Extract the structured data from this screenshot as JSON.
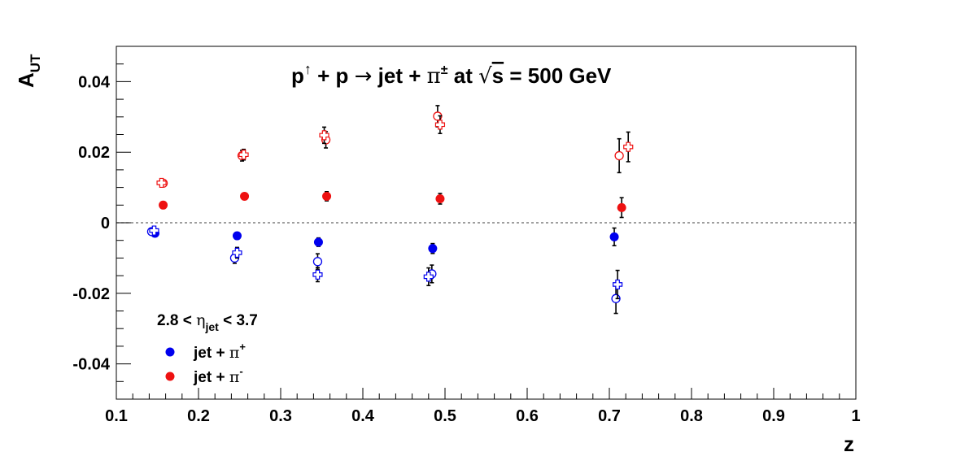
{
  "chart_data": {
    "type": "scatter",
    "title_parts": {
      "p": "p",
      "up_arrow": "↑",
      "plus_p": " + p ",
      "arrow": "→",
      "jet_plus": " jet + ",
      "pi": "π",
      "pi_sup": "±",
      "at": " at ",
      "sqrt": "√",
      "s": "s",
      "energy": " = 500 GeV"
    },
    "xlabel": "z",
    "ylabel": "A",
    "ylabel_sub": "UT",
    "xlim": [
      0.1,
      1.0
    ],
    "ylim": [
      -0.05,
      0.05
    ],
    "x_ticks": [
      0.1,
      0.2,
      0.3,
      0.4,
      0.5,
      0.6,
      0.7,
      0.8,
      0.9,
      1.0
    ],
    "x_tick_labels": [
      "0.1",
      "0.2",
      "0.3",
      "0.4",
      "0.5",
      "0.6",
      "0.7",
      "0.8",
      "0.9",
      "1"
    ],
    "y_ticks": [
      -0.04,
      -0.02,
      0,
      0.02,
      0.04
    ],
    "y_tick_labels": [
      "-0.04",
      "-0.02",
      "0",
      "0.02",
      "0.04"
    ],
    "zero_line": true,
    "grid": false,
    "legend": {
      "placement": "bottom-left",
      "header_pre": "2.8 < ",
      "header_eta": "η",
      "header_sub": "jet",
      "header_post": " < 3.7",
      "entries": [
        {
          "text": "jet + ",
          "pi": "π",
          "sup": "+",
          "color": "#0000ee"
        },
        {
          "text": "jet + ",
          "pi": "π",
          "sup": "-",
          "color": "#ee1111"
        }
      ]
    },
    "series": [
      {
        "marker": "filled-circle",
        "color": "#0000ee",
        "points": [
          {
            "x": 0.147,
            "y": -0.003,
            "err": 0.0008
          },
          {
            "x": 0.247,
            "y": -0.0037,
            "err": 0.0006
          },
          {
            "x": 0.346,
            "y": -0.0055,
            "err": 0.0012
          },
          {
            "x": 0.485,
            "y": -0.0073,
            "err": 0.0014
          },
          {
            "x": 0.706,
            "y": -0.004,
            "err": 0.0025
          }
        ]
      },
      {
        "marker": "filled-circle",
        "color": "#ee1111",
        "points": [
          {
            "x": 0.157,
            "y": 0.005,
            "err": 0.0006
          },
          {
            "x": 0.256,
            "y": 0.0075,
            "err": 0.0006
          },
          {
            "x": 0.356,
            "y": 0.0075,
            "err": 0.0013
          },
          {
            "x": 0.494,
            "y": 0.0068,
            "err": 0.0015
          },
          {
            "x": 0.715,
            "y": 0.0043,
            "err": 0.0028
          }
        ]
      },
      {
        "marker": "open-circle",
        "color": "#0000ee",
        "points": [
          {
            "x": 0.143,
            "y": -0.0025,
            "err": 0.0008
          },
          {
            "x": 0.244,
            "y": -0.01,
            "err": 0.0015
          },
          {
            "x": 0.345,
            "y": -0.011,
            "err": 0.0022
          },
          {
            "x": 0.484,
            "y": -0.0145,
            "err": 0.0025
          },
          {
            "x": 0.708,
            "y": -0.0215,
            "err": 0.0042
          }
        ]
      },
      {
        "marker": "open-cross",
        "color": "#0000ee",
        "points": [
          {
            "x": 0.146,
            "y": -0.0022,
            "err": 0.0008
          },
          {
            "x": 0.247,
            "y": -0.0085,
            "err": 0.0015
          },
          {
            "x": 0.345,
            "y": -0.0147,
            "err": 0.002
          },
          {
            "x": 0.48,
            "y": -0.0153,
            "err": 0.0025
          },
          {
            "x": 0.71,
            "y": -0.0175,
            "err": 0.004
          }
        ]
      },
      {
        "marker": "open-circle",
        "color": "#ee1111",
        "points": [
          {
            "x": 0.157,
            "y": 0.0112,
            "err": 0.0008
          },
          {
            "x": 0.253,
            "y": 0.019,
            "err": 0.0015
          },
          {
            "x": 0.355,
            "y": 0.0235,
            "err": 0.0023
          },
          {
            "x": 0.491,
            "y": 0.0302,
            "err": 0.003
          },
          {
            "x": 0.712,
            "y": 0.019,
            "err": 0.0048
          }
        ]
      },
      {
        "marker": "open-cross",
        "color": "#ee1111",
        "points": [
          {
            "x": 0.155,
            "y": 0.0113,
            "err": 0.0008
          },
          {
            "x": 0.255,
            "y": 0.0193,
            "err": 0.0015
          },
          {
            "x": 0.353,
            "y": 0.0248,
            "err": 0.0023
          },
          {
            "x": 0.494,
            "y": 0.0278,
            "err": 0.0025
          },
          {
            "x": 0.723,
            "y": 0.0215,
            "err": 0.0042
          }
        ]
      }
    ]
  }
}
